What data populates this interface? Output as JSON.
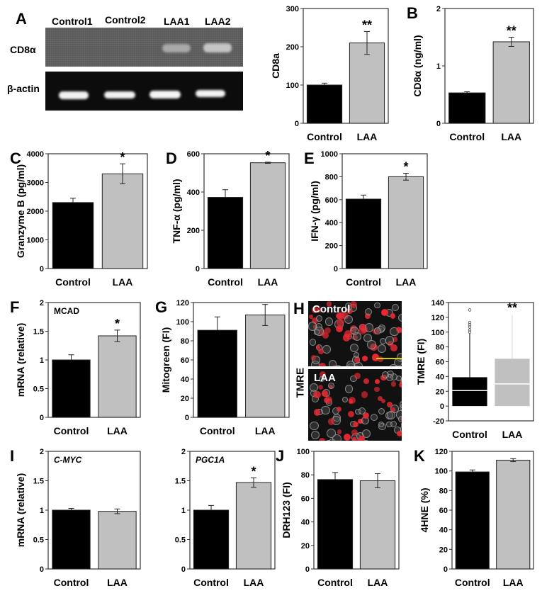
{
  "figure": {
    "panels": [
      "A",
      "B",
      "C",
      "D",
      "E",
      "F",
      "G",
      "H",
      "I",
      "J",
      "K"
    ],
    "colors": {
      "control": "#000000",
      "laa": "#c0c0c0",
      "axis": "#333333"
    }
  },
  "panel_a": {
    "letter": "A",
    "lanes": [
      "Control1",
      "Control2",
      "LAA1",
      "LAA2"
    ],
    "rows": [
      "CD8α",
      "β-actin"
    ]
  },
  "panel_h": {
    "letter": "H",
    "image_labels": [
      "Control",
      "LAA"
    ],
    "side_label": "TMRE"
  },
  "chart_data": [
    {
      "id": "A_quant",
      "type": "bar",
      "title": "",
      "panel": "A",
      "categories": [
        "Control",
        "LAA"
      ],
      "values": [
        100,
        210
      ],
      "errors": [
        5,
        30
      ],
      "significance": [
        "",
        "**"
      ],
      "xlabel": "",
      "ylabel": "CD8a",
      "ylim": [
        0,
        300
      ],
      "yticks": [
        0,
        100,
        200,
        300
      ]
    },
    {
      "id": "B",
      "type": "bar",
      "panel": "B",
      "categories": [
        "Control",
        "LAA"
      ],
      "values": [
        0.53,
        1.42
      ],
      "errors": [
        0.02,
        0.08
      ],
      "significance": [
        "",
        "**"
      ],
      "xlabel": "",
      "ylabel": "CD8α (ng/ml)",
      "ylim": [
        0,
        2
      ],
      "yticks": [
        0,
        1,
        2
      ]
    },
    {
      "id": "C",
      "type": "bar",
      "panel": "C",
      "categories": [
        "Control",
        "LAA"
      ],
      "values": [
        2300,
        3300
      ],
      "errors": [
        150,
        350
      ],
      "significance": [
        "",
        "*"
      ],
      "xlabel": "",
      "ylabel": "Granzyme B (pg/ml)",
      "ylim": [
        0,
        4000
      ],
      "yticks": [
        0,
        1000,
        2000,
        3000,
        4000
      ]
    },
    {
      "id": "D",
      "type": "bar",
      "panel": "D",
      "categories": [
        "Control",
        "LAA"
      ],
      "values": [
        372,
        553
      ],
      "errors": [
        40,
        3
      ],
      "significance": [
        "",
        "*"
      ],
      "xlabel": "",
      "ylabel": "TNF-α (pg/ml)",
      "ylim": [
        0,
        600
      ],
      "yticks": [
        0,
        200,
        400,
        600
      ]
    },
    {
      "id": "E",
      "type": "bar",
      "panel": "E",
      "categories": [
        "Control",
        "LAA"
      ],
      "values": [
        605,
        800
      ],
      "errors": [
        35,
        30
      ],
      "significance": [
        "",
        "*"
      ],
      "xlabel": "",
      "ylabel": "IFN-γ (pg/ml)",
      "ylim": [
        0,
        1000
      ],
      "yticks": [
        0,
        200,
        400,
        600,
        800,
        1000
      ]
    },
    {
      "id": "F",
      "type": "bar",
      "panel": "F",
      "inset_label": "MCAD",
      "categories": [
        "Control",
        "LAA"
      ],
      "values": [
        1.0,
        1.42
      ],
      "errors": [
        0.09,
        0.1
      ],
      "significance": [
        "",
        "*"
      ],
      "xlabel": "",
      "ylabel": "mRNA (relative)",
      "ylim": [
        0,
        2
      ],
      "yticks": [
        0,
        0.5,
        1,
        1.5,
        2
      ]
    },
    {
      "id": "G",
      "type": "bar",
      "panel": "G",
      "categories": [
        "Control",
        "LAA"
      ],
      "values": [
        91,
        107
      ],
      "errors": [
        14,
        11
      ],
      "significance": [
        "",
        ""
      ],
      "xlabel": "",
      "ylabel": "Mitogreen (FI)",
      "ylim": [
        0,
        120
      ],
      "yticks": [
        0,
        20,
        40,
        60,
        80,
        100,
        120
      ]
    },
    {
      "id": "H_box",
      "type": "box",
      "panel": "H",
      "categories": [
        "Control",
        "LAA"
      ],
      "boxes": [
        {
          "q1": 0,
          "median": 21,
          "q3": 39,
          "whisker_high": 98,
          "outliers": [
            100,
            103,
            107,
            110,
            113,
            130
          ]
        },
        {
          "q1": 0,
          "median": 30,
          "q3": 64,
          "whisker_high": 123,
          "outliers": []
        }
      ],
      "significance": [
        "",
        "**"
      ],
      "xlabel": "",
      "ylabel": "TMRE (FI)",
      "ylim": [
        -20,
        140
      ],
      "yticks": [
        -20,
        0,
        20,
        40,
        60,
        80,
        100,
        120,
        140
      ]
    },
    {
      "id": "I_cmyc",
      "type": "bar",
      "panel": "I",
      "inset_label": "C-MYC",
      "categories": [
        "Control",
        "LAA"
      ],
      "values": [
        1.0,
        0.98
      ],
      "errors": [
        0.03,
        0.04
      ],
      "significance": [
        "",
        ""
      ],
      "xlabel": "",
      "ylabel": "mRNA (relative)",
      "ylim": [
        0,
        2
      ],
      "yticks": [
        0,
        0.5,
        1,
        1.5,
        2
      ]
    },
    {
      "id": "I_pgc1a",
      "type": "bar",
      "panel": "I",
      "inset_label": "PGC1A",
      "categories": [
        "Control",
        "LAA"
      ],
      "values": [
        1.0,
        1.47
      ],
      "errors": [
        0.08,
        0.08
      ],
      "significance": [
        "",
        "*"
      ],
      "xlabel": "",
      "ylabel": "",
      "ylim": [
        0,
        2
      ],
      "yticks": [
        0,
        0.5,
        1,
        1.5,
        2
      ]
    },
    {
      "id": "J",
      "type": "bar",
      "panel": "J",
      "categories": [
        "Control",
        "LAA"
      ],
      "values": [
        76,
        75
      ],
      "errors": [
        6,
        6
      ],
      "significance": [
        "",
        ""
      ],
      "xlabel": "",
      "ylabel": "DRH123 (FI)",
      "ylim": [
        0,
        100
      ],
      "yticks": [
        0,
        20,
        40,
        60,
        80,
        100
      ]
    },
    {
      "id": "K",
      "type": "bar",
      "panel": "K",
      "categories": [
        "Control",
        "LAA"
      ],
      "values": [
        99,
        111
      ],
      "errors": [
        2,
        1.5
      ],
      "significance": [
        "",
        ""
      ],
      "xlabel": "",
      "ylabel": "4HNE (%)",
      "ylim": [
        0,
        120
      ],
      "yticks": [
        0,
        20,
        40,
        60,
        80,
        100,
        120
      ]
    }
  ]
}
